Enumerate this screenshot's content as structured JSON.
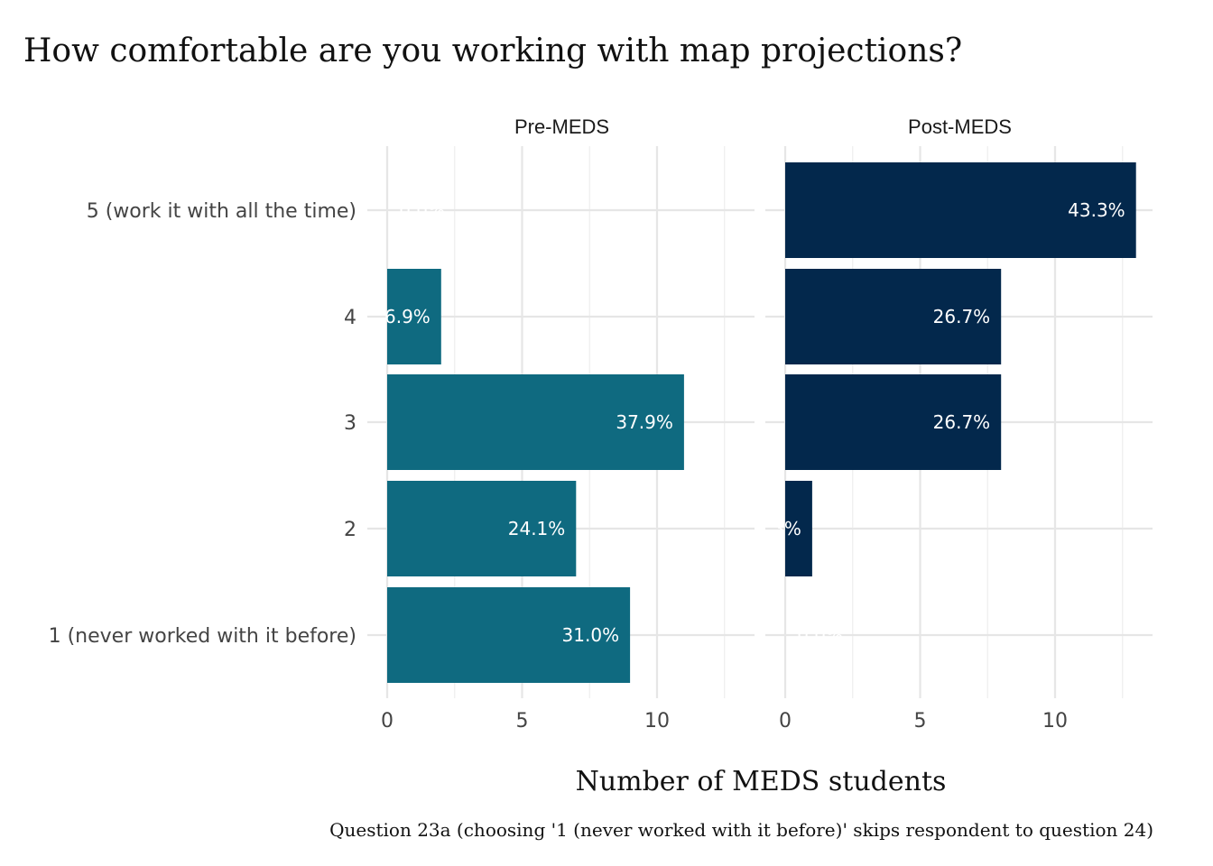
{
  "chart_data": {
    "type": "bar",
    "orientation": "horizontal",
    "title": "How comfortable are you working with map projections?",
    "xlabel": "Number of MEDS students",
    "caption": "Question 23a (choosing '1 (never worked with it before)' skips respondent to question 24)",
    "categories": [
      "1 (never worked with it before)",
      "2",
      "3",
      "4",
      "5 (work it with all the time)"
    ],
    "xlim": [
      0,
      13.7
    ],
    "xticks": [
      0,
      5,
      10
    ],
    "grid": true,
    "legend": "none",
    "facets": [
      {
        "name": "Pre-MEDS",
        "color": "#0f6a80",
        "values": [
          9,
          7,
          11,
          2,
          0
        ],
        "labels": [
          "31.0%",
          "24.1%",
          "37.9%",
          "6.9%",
          "0.0%"
        ]
      },
      {
        "name": "Post-MEDS",
        "color": "#03284c",
        "values": [
          0,
          1,
          8,
          8,
          13
        ],
        "labels": [
          "0.0%",
          "3.3%",
          "26.7%",
          "26.7%",
          "43.3%"
        ]
      }
    ]
  }
}
